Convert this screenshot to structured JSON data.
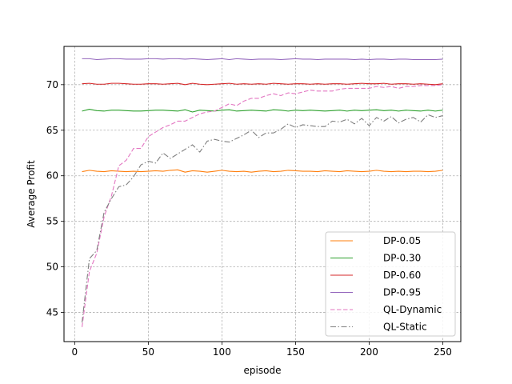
{
  "chart_data": {
    "type": "line",
    "title": "",
    "xlabel": "episode",
    "ylabel": "Average Profit",
    "xlim": [
      -7.25,
      262.25
    ],
    "ylim": [
      41.8,
      74.2
    ],
    "xticks": [
      0,
      50,
      100,
      150,
      200,
      250
    ],
    "yticks": [
      45,
      50,
      55,
      60,
      65,
      70
    ],
    "grid": true,
    "legend_position": "lower-right",
    "x": [
      5,
      10,
      15,
      20,
      25,
      30,
      35,
      40,
      45,
      50,
      55,
      60,
      65,
      70,
      75,
      80,
      85,
      90,
      95,
      100,
      105,
      110,
      115,
      120,
      125,
      130,
      135,
      140,
      145,
      150,
      155,
      160,
      165,
      170,
      175,
      180,
      185,
      190,
      195,
      200,
      205,
      210,
      215,
      220,
      225,
      230,
      235,
      240,
      245,
      250
    ],
    "series": [
      {
        "name": "DP-0.05",
        "color": "#ff7f0e",
        "dash": "solid",
        "values": [
          60.45,
          60.6,
          60.5,
          60.45,
          60.55,
          60.5,
          60.45,
          60.5,
          60.45,
          60.5,
          60.55,
          60.5,
          60.6,
          60.65,
          60.4,
          60.55,
          60.5,
          60.4,
          60.5,
          60.6,
          60.5,
          60.45,
          60.5,
          60.4,
          60.5,
          60.55,
          60.45,
          60.5,
          60.6,
          60.55,
          60.5,
          60.5,
          60.45,
          60.55,
          60.5,
          60.45,
          60.55,
          60.5,
          60.45,
          60.5,
          60.6,
          60.5,
          60.45,
          60.5,
          60.45,
          60.5,
          60.5,
          60.45,
          60.5,
          60.6
        ]
      },
      {
        "name": "DP-0.30",
        "color": "#2ca02c",
        "dash": "solid",
        "values": [
          67.1,
          67.3,
          67.15,
          67.1,
          67.2,
          67.2,
          67.15,
          67.1,
          67.1,
          67.15,
          67.2,
          67.2,
          67.15,
          67.1,
          67.25,
          67.0,
          67.2,
          67.15,
          67.1,
          67.2,
          67.25,
          67.1,
          67.15,
          67.2,
          67.15,
          67.1,
          67.25,
          67.2,
          67.1,
          67.2,
          67.15,
          67.2,
          67.15,
          67.1,
          67.15,
          67.2,
          67.1,
          67.2,
          67.15,
          67.2,
          67.25,
          67.15,
          67.2,
          67.1,
          67.2,
          67.15,
          67.1,
          67.2,
          67.1,
          67.2
        ]
      },
      {
        "name": "DP-0.60",
        "color": "#d62728",
        "dash": "solid",
        "values": [
          70.1,
          70.15,
          70.05,
          70.05,
          70.15,
          70.15,
          70.1,
          70.05,
          70.05,
          70.1,
          70.1,
          70.05,
          70.1,
          70.15,
          70.0,
          70.15,
          70.05,
          70.0,
          70.05,
          70.1,
          70.15,
          70.05,
          70.1,
          70.05,
          70.1,
          70.05,
          70.15,
          70.1,
          70.05,
          70.1,
          70.1,
          70.05,
          70.1,
          70.05,
          70.1,
          70.1,
          70.05,
          70.1,
          70.15,
          70.1,
          70.1,
          70.15,
          70.05,
          70.1,
          70.1,
          70.05,
          70.1,
          70.05,
          70.0,
          70.1
        ]
      },
      {
        "name": "DP-0.95",
        "color": "#9467bd",
        "dash": "solid",
        "values": [
          72.85,
          72.85,
          72.75,
          72.8,
          72.85,
          72.85,
          72.8,
          72.8,
          72.8,
          72.85,
          72.85,
          72.8,
          72.85,
          72.85,
          72.8,
          72.85,
          72.8,
          72.75,
          72.8,
          72.85,
          72.75,
          72.85,
          72.8,
          72.75,
          72.8,
          72.8,
          72.8,
          72.75,
          72.8,
          72.85,
          72.8,
          72.8,
          72.75,
          72.8,
          72.8,
          72.8,
          72.8,
          72.75,
          72.8,
          72.75,
          72.8,
          72.8,
          72.75,
          72.8,
          72.8,
          72.75,
          72.75,
          72.75,
          72.75,
          72.8
        ]
      },
      {
        "name": "QL-Dynamic",
        "color": "#e377c2",
        "dash": "dashed",
        "values": [
          43.4,
          49.5,
          51.5,
          55.5,
          57.8,
          61.1,
          61.7,
          63.0,
          63.0,
          64.3,
          64.8,
          65.3,
          65.6,
          66.0,
          66.0,
          66.4,
          66.8,
          67.0,
          67.1,
          67.5,
          67.9,
          67.7,
          68.2,
          68.5,
          68.5,
          68.8,
          69.0,
          68.8,
          69.1,
          69.0,
          69.2,
          69.4,
          69.3,
          69.3,
          69.3,
          69.5,
          69.6,
          69.6,
          69.6,
          69.6,
          69.8,
          69.7,
          69.8,
          69.6,
          69.8,
          69.8,
          69.9,
          69.9,
          69.9,
          70.0
        ]
      },
      {
        "name": "QL-Static",
        "color": "#7f7f7f",
        "dash": "dashdot",
        "values": [
          43.9,
          50.9,
          51.8,
          56.0,
          57.5,
          58.8,
          59.0,
          59.9,
          61.2,
          61.6,
          61.4,
          62.5,
          61.9,
          62.4,
          62.9,
          63.4,
          62.6,
          63.8,
          64.0,
          63.8,
          63.7,
          64.1,
          64.5,
          65.0,
          64.2,
          64.7,
          64.7,
          65.1,
          65.7,
          65.3,
          65.6,
          65.5,
          65.4,
          65.4,
          66.0,
          65.9,
          66.2,
          65.7,
          66.3,
          65.5,
          66.4,
          66.0,
          66.5,
          65.8,
          66.2,
          66.4,
          65.9,
          66.7,
          66.4,
          66.6
        ]
      }
    ]
  }
}
